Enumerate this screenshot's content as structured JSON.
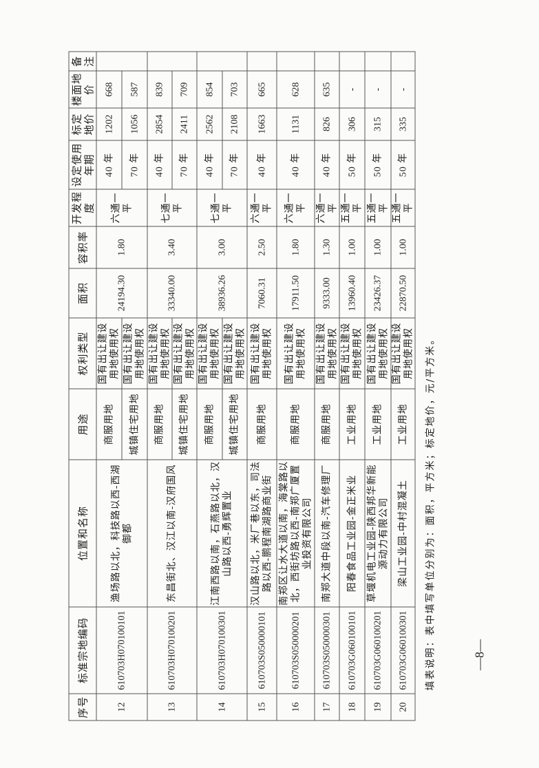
{
  "table": {
    "headers": [
      "序号",
      "标准宗地编码",
      "位置和名称",
      "用途",
      "权利类型",
      "面积",
      "容积率",
      "开发程度",
      "设定使用年期",
      "标定地价",
      "楼面地价",
      "备注"
    ],
    "rows": [
      {
        "no": "12",
        "code": "610703H070100101",
        "location": "渔场路以北，科技路以西-西湖御都",
        "area": "24194.30",
        "far": "1.80",
        "dev": "六通一平",
        "remark": "",
        "subs": [
          {
            "use": "商服用地",
            "right": "国有出让建设用地使用权",
            "term": "40 年",
            "price": "1202",
            "floor": "668"
          },
          {
            "use": "城镇住宅用地",
            "right": "国有出让建设用地使用权",
            "term": "70 年",
            "price": "1056",
            "floor": "587"
          }
        ]
      },
      {
        "no": "13",
        "code": "610703H070100201",
        "location": "东昌街北、汉江以南-汉府国风",
        "area": "33340.00",
        "far": "3.40",
        "dev": "七通一平",
        "remark": "",
        "subs": [
          {
            "use": "商服用地",
            "right": "国有出让建设用地使用权",
            "term": "40 年",
            "price": "2854",
            "floor": "839"
          },
          {
            "use": "城镇住宅用地",
            "right": "国有出让建设用地使用权",
            "term": "70 年",
            "price": "2411",
            "floor": "709"
          }
        ]
      },
      {
        "no": "14",
        "code": "610703H070100301",
        "location": "江南西路以南，石燕路以北，汉山路以西-勇辉置业",
        "area": "38936.26",
        "far": "3.00",
        "dev": "七通一平",
        "remark": "",
        "subs": [
          {
            "use": "商服用地",
            "right": "国有出让建设用地使用权",
            "term": "40 年",
            "price": "2562",
            "floor": "854"
          },
          {
            "use": "城镇住宅用地",
            "right": "国有出让建设用地使用权",
            "term": "70 年",
            "price": "2108",
            "floor": "703"
          }
        ]
      },
      {
        "no": "15",
        "code": "610703S050000101",
        "location": "汉山路以北，米厂巷以东，司法路以西-鹏程南湖路商业街",
        "area": "7060.31",
        "far": "2.50",
        "dev": "六通一平",
        "remark": "",
        "subs": [
          {
            "use": "商服用地",
            "right": "国有出让建设用地使用权",
            "term": "40 年",
            "price": "1663",
            "floor": "665"
          }
        ]
      },
      {
        "no": "16",
        "code": "610703S050000201",
        "location": "南郑区让水大道以南，海棠路以北，西街坊路以西-南郑广厦置业投资有限公司",
        "area": "17911.50",
        "far": "1.80",
        "dev": "六通一平",
        "remark": "",
        "subs": [
          {
            "use": "商服用地",
            "right": "国有出让建设用地使用权",
            "term": "40 年",
            "price": "1131",
            "floor": "628"
          }
        ]
      },
      {
        "no": "17",
        "code": "610703S050000301",
        "location": "南郑大道中段以南-汽车修理厂",
        "area": "9333.00",
        "far": "1.30",
        "dev": "六通一平",
        "remark": "",
        "subs": [
          {
            "use": "商服用地",
            "right": "国有出让建设用地使用权",
            "term": "40 年",
            "price": "826",
            "floor": "635"
          }
        ]
      },
      {
        "no": "18",
        "code": "610703G060100101",
        "location": "阳春食品工业园-金正米业",
        "area": "13960.40",
        "far": "1.00",
        "dev": "五通一平",
        "remark": "",
        "subs": [
          {
            "use": "工业用地",
            "right": "国有出让建设用地使用权",
            "term": "50 年",
            "price": "306",
            "floor": "-"
          }
        ]
      },
      {
        "no": "19",
        "code": "610703G060100201",
        "location": "草堰机电工业园-陕西邦华新能源动力有限公司",
        "area": "23426.37",
        "far": "1.00",
        "dev": "五通一平",
        "remark": "",
        "subs": [
          {
            "use": "工业用地",
            "right": "国有出让建设用地使用权",
            "term": "50 年",
            "price": "315",
            "floor": "-"
          }
        ]
      },
      {
        "no": "20",
        "code": "610703G060100301",
        "location": "梁山工业园-中村混凝土",
        "area": "22870.50",
        "far": "1.00",
        "dev": "五通一平",
        "remark": "",
        "subs": [
          {
            "use": "工业用地",
            "right": "国有出让建设用地使用权",
            "term": "50 年",
            "price": "335",
            "floor": "-"
          }
        ]
      }
    ]
  },
  "note": "填表说明：表中填写单位分别为：面积，平方米；标定地价，元/平方米。",
  "page_number": "—8—"
}
